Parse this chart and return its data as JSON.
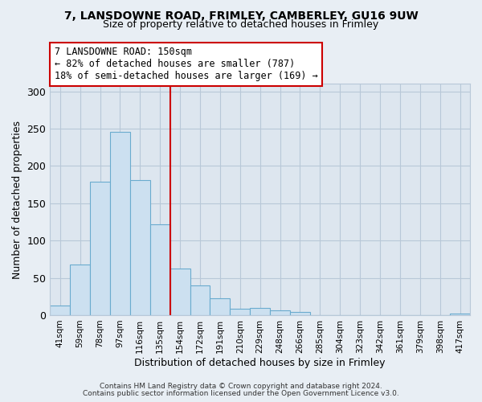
{
  "title": "7, LANSDOWNE ROAD, FRIMLEY, CAMBERLEY, GU16 9UW",
  "subtitle": "Size of property relative to detached houses in Frimley",
  "xlabel": "Distribution of detached houses by size in Frimley",
  "ylabel": "Number of detached properties",
  "bar_labels": [
    "41sqm",
    "59sqm",
    "78sqm",
    "97sqm",
    "116sqm",
    "135sqm",
    "154sqm",
    "172sqm",
    "191sqm",
    "210sqm",
    "229sqm",
    "248sqm",
    "266sqm",
    "285sqm",
    "304sqm",
    "323sqm",
    "342sqm",
    "361sqm",
    "379sqm",
    "398sqm",
    "417sqm"
  ],
  "bar_values": [
    13,
    68,
    179,
    246,
    181,
    122,
    62,
    40,
    23,
    9,
    10,
    6,
    4,
    0,
    0,
    0,
    0,
    0,
    0,
    0,
    2
  ],
  "bar_color": "#cce0f0",
  "bar_edge_color": "#6aabce",
  "vline_x_idx": 6,
  "vline_color": "#cc0000",
  "annotation_title": "7 LANSDOWNE ROAD: 150sqm",
  "annotation_line1": "← 82% of detached houses are smaller (787)",
  "annotation_line2": "18% of semi-detached houses are larger (169) →",
  "annotation_box_color": "white",
  "annotation_box_edge": "#cc0000",
  "ylim": [
    0,
    310
  ],
  "yticks": [
    0,
    50,
    100,
    150,
    200,
    250,
    300
  ],
  "footnote1": "Contains HM Land Registry data © Crown copyright and database right 2024.",
  "footnote2": "Contains public sector information licensed under the Open Government Licence v3.0.",
  "background_color": "#e8eef4",
  "plot_bg_color": "#dde6ef",
  "grid_color": "#b8c8d8"
}
